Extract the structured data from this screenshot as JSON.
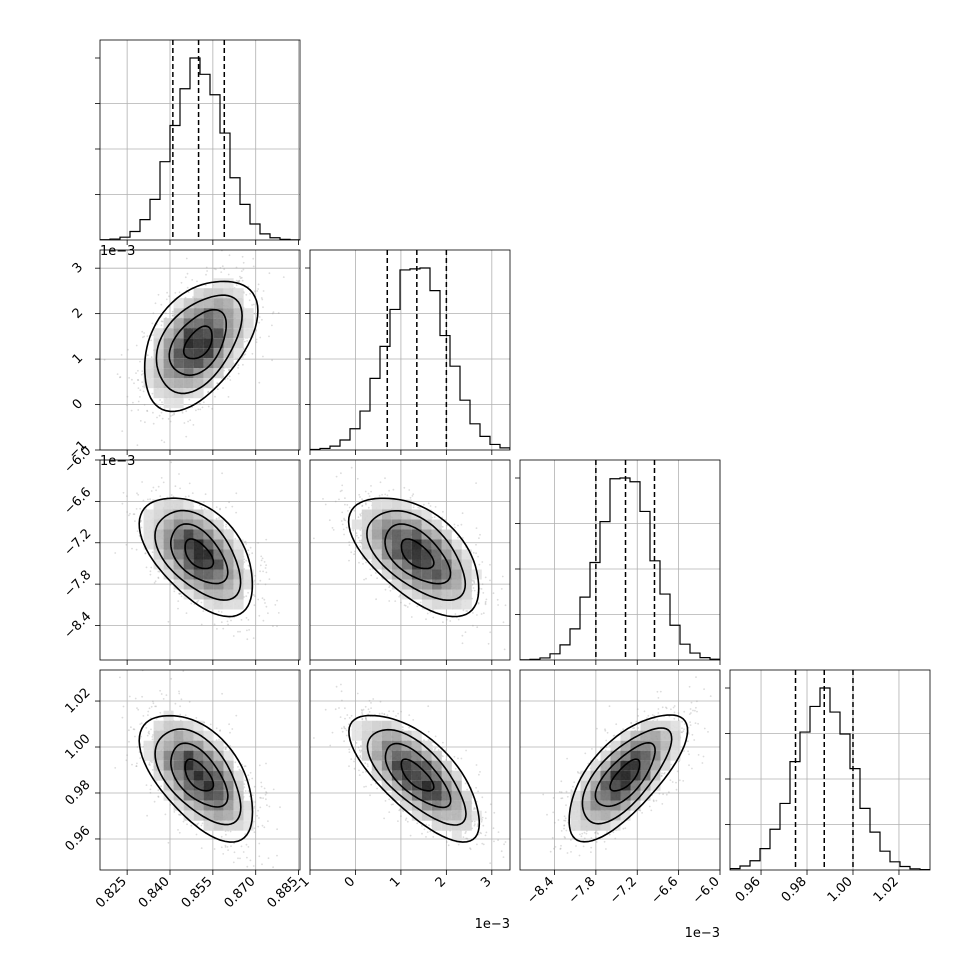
{
  "chart_data": {
    "type": "corner",
    "n_params": 4,
    "grid": true,
    "params": [
      {
        "index": 0,
        "range": [
          0.8155,
          0.8855
        ],
        "mean": 0.85,
        "std": 0.009,
        "ticks": [
          "0.825",
          "0.840",
          "0.855",
          "0.870",
          "0.885"
        ],
        "tick_values": [
          0.825,
          0.84,
          0.855,
          0.87,
          0.885
        ],
        "exponent_label": "",
        "quantiles": [
          0.841,
          0.85,
          0.859
        ]
      },
      {
        "index": 1,
        "range": [
          -1.0,
          3.4
        ],
        "mean": 1.35,
        "std": 0.65,
        "ticks": [
          "−1",
          "0",
          "1",
          "2",
          "3"
        ],
        "tick_values": [
          -1,
          0,
          1,
          2,
          3
        ],
        "exponent_label": "1e−3",
        "quantiles": [
          0.7,
          1.35,
          2.0
        ]
      },
      {
        "index": 2,
        "range": [
          -8.9,
          -6.0
        ],
        "mean": -7.37,
        "std": 0.39,
        "ticks": [
          "−8.4",
          "−7.8",
          "−7.2",
          "−6.6",
          "−6.0"
        ],
        "tick_values": [
          -8.4,
          -7.8,
          -7.2,
          -6.6,
          -6.0
        ],
        "exponent_label": "1e−3",
        "quantiles": [
          -7.8,
          -7.37,
          -6.95
        ]
      },
      {
        "index": 3,
        "range": [
          0.9465,
          1.0335
        ],
        "mean": 0.9875,
        "std": 0.0125,
        "ticks": [
          "0.96",
          "0.98",
          "1.00",
          "1.02"
        ],
        "tick_values": [
          0.96,
          0.98,
          1.0,
          1.02
        ],
        "exponent_label": "",
        "quantiles": [
          0.975,
          0.9875,
          1.0
        ]
      }
    ],
    "correlations": {
      "1_0": 0.45,
      "2_0": -0.5,
      "2_1": -0.55,
      "3_0": -0.55,
      "3_1": -0.7,
      "3_2": 0.7
    },
    "contour_levels_sigma": [
      0.5,
      1.0,
      1.5,
      2.0
    ],
    "histogram_bins": 20
  }
}
